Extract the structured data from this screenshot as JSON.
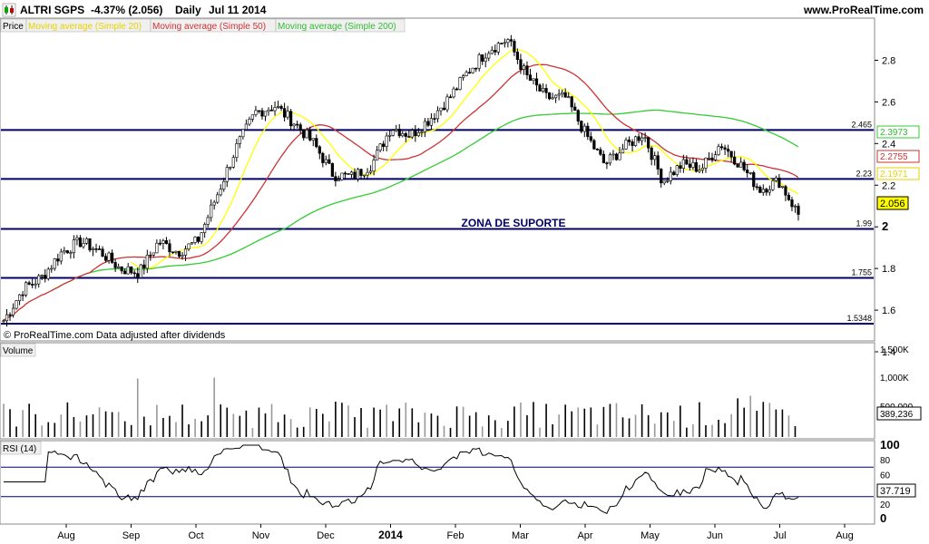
{
  "header": {
    "title": "ALTRI SGPS",
    "change": "-4.37% (2.056)",
    "period": "Daily",
    "date": "Jul 11 2014",
    "site": "www.ProRealTime.com",
    "watermark": "© ProRealTime.com  Data adjusted after dividends"
  },
  "legend": {
    "price": "Price",
    "ma20": "Moving average (Simple 20)",
    "ma50": "Moving average (Simple 50)",
    "ma200": "Moving average (Simple 200)"
  },
  "colors": {
    "candle": "#000000",
    "ma20": "#ffff00",
    "ma50": "#cc3333",
    "ma200": "#33cc33",
    "level": "#000066",
    "volume": "#000000",
    "volume_alt": "#999999",
    "rsi_over": "#cc9999"
  },
  "annotation": "ZONA DE SUPORTE",
  "chart_data": [
    {
      "type": "candlestick",
      "name": "price",
      "ylim": [
        1.4,
        2.95
      ],
      "y_ticks": [
        "2.8",
        "2.6",
        "2.4",
        "2.2",
        "2",
        "1.8",
        "1.6",
        "1.4"
      ],
      "x_labels": [
        "Aug",
        "Sep",
        "Oct",
        "Nov",
        "Dec",
        "2014",
        "Feb",
        "Mar",
        "Apr",
        "May",
        "Jun",
        "Jul",
        "Aug"
      ],
      "levels": [
        {
          "value": 2.465,
          "label": "2.465"
        },
        {
          "value": 2.23,
          "label": "2.23"
        },
        {
          "value": 1.99,
          "label": "1.99"
        },
        {
          "value": 1.755,
          "label": "1.755"
        },
        {
          "value": 1.5348,
          "label": "1.5348"
        }
      ],
      "price_path": [
        [
          "Jul",
          1.55
        ],
        [
          "Aug",
          1.7
        ],
        [
          "Aug",
          1.76
        ],
        [
          "Aug",
          1.88
        ],
        [
          "Aug",
          1.93
        ],
        [
          "Sep",
          1.88
        ],
        [
          "Sep",
          1.8
        ],
        [
          "Sep",
          1.78
        ],
        [
          "Oct",
          1.93
        ],
        [
          "Oct",
          1.88
        ],
        [
          "Oct",
          1.93
        ],
        [
          "Oct",
          2.15
        ],
        [
          "Nov",
          2.38
        ],
        [
          "Nov",
          2.55
        ],
        [
          "Nov",
          2.58
        ],
        [
          "Dec",
          2.5
        ],
        [
          "Dec",
          2.4
        ],
        [
          "Dec",
          2.25
        ],
        [
          "Dec",
          2.24
        ],
        [
          "Jan",
          2.3
        ],
        [
          "Jan",
          2.48
        ],
        [
          "Jan",
          2.44
        ],
        [
          "Feb",
          2.52
        ],
        [
          "Feb",
          2.62
        ],
        [
          "Feb",
          2.75
        ],
        [
          "Mar",
          2.85
        ],
        [
          "Mar",
          2.9
        ],
        [
          "Mar",
          2.72
        ],
        [
          "Mar",
          2.62
        ],
        [
          "Apr",
          2.62
        ],
        [
          "Apr",
          2.45
        ],
        [
          "Apr",
          2.3
        ],
        [
          "May",
          2.38
        ],
        [
          "May",
          2.45
        ],
        [
          "May",
          2.22
        ],
        [
          "May",
          2.3
        ],
        [
          "Jun",
          2.28
        ],
        [
          "Jun",
          2.4
        ],
        [
          "Jun",
          2.3
        ],
        [
          "Jul",
          2.18
        ],
        [
          "Jul",
          2.22
        ],
        [
          "Jul",
          2.06
        ]
      ],
      "ma_values": {
        "ma20": "2.1971",
        "ma50": "2.2755",
        "ma200": "2.3973",
        "last": "2.056"
      }
    },
    {
      "type": "bar",
      "name": "Volume",
      "y_ticks": [
        "1,500K",
        "1,000K",
        "500,000"
      ],
      "ylim": [
        0,
        1500000
      ],
      "last_value": "389,236"
    },
    {
      "type": "line",
      "name": "RSI (14)",
      "ylim": [
        0,
        100
      ],
      "y_ticks": [
        "100",
        "80",
        "60",
        "40",
        "20",
        "0"
      ],
      "bands": [
        70,
        30
      ],
      "last_value": "37.719"
    }
  ]
}
